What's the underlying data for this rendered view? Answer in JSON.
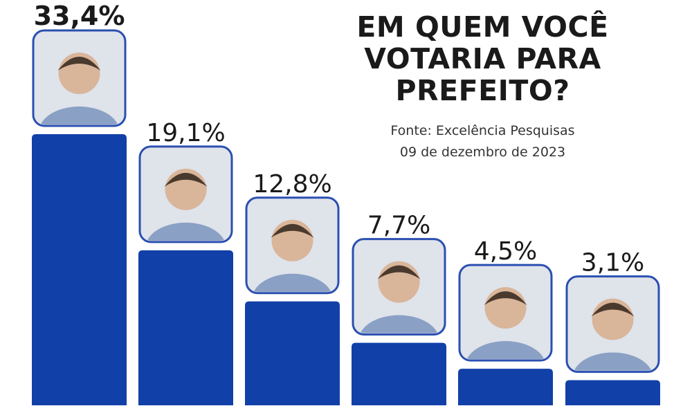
{
  "title_lines": [
    "EM QUEM VOCÊ",
    "VOTARIA PARA",
    "PREFEITO?"
  ],
  "source": {
    "line1": "Fonte: Excelência Pesquisas",
    "line2": "09 de dezembro de 2023"
  },
  "colors": {
    "bar": "#1140a8",
    "photo_border": "#2a4fb0",
    "text": "#1a1a1a"
  },
  "chart_data": {
    "type": "bar",
    "title": "EM QUEM VOCÊ VOTARIA PARA PREFEITO?",
    "subtitle": "Fonte: Excelência Pesquisas — 09 de dezembro de 2023",
    "categories": [
      "",
      "",
      "",
      "",
      "",
      ""
    ],
    "values": [
      33.4,
      19.1,
      12.8,
      7.7,
      4.5,
      3.1
    ],
    "labels": [
      "33,4%",
      "19,1%",
      "12,8%",
      "7,7%",
      "4,5%",
      "3,1%"
    ],
    "xlabel": "",
    "ylabel": "",
    "grid": false,
    "legend": "none",
    "candidate_photos": [
      "candidate-photo-1",
      "candidate-photo-2",
      "candidate-photo-3",
      "candidate-photo-4",
      "candidate-photo-5",
      "candidate-photo-6"
    ]
  }
}
